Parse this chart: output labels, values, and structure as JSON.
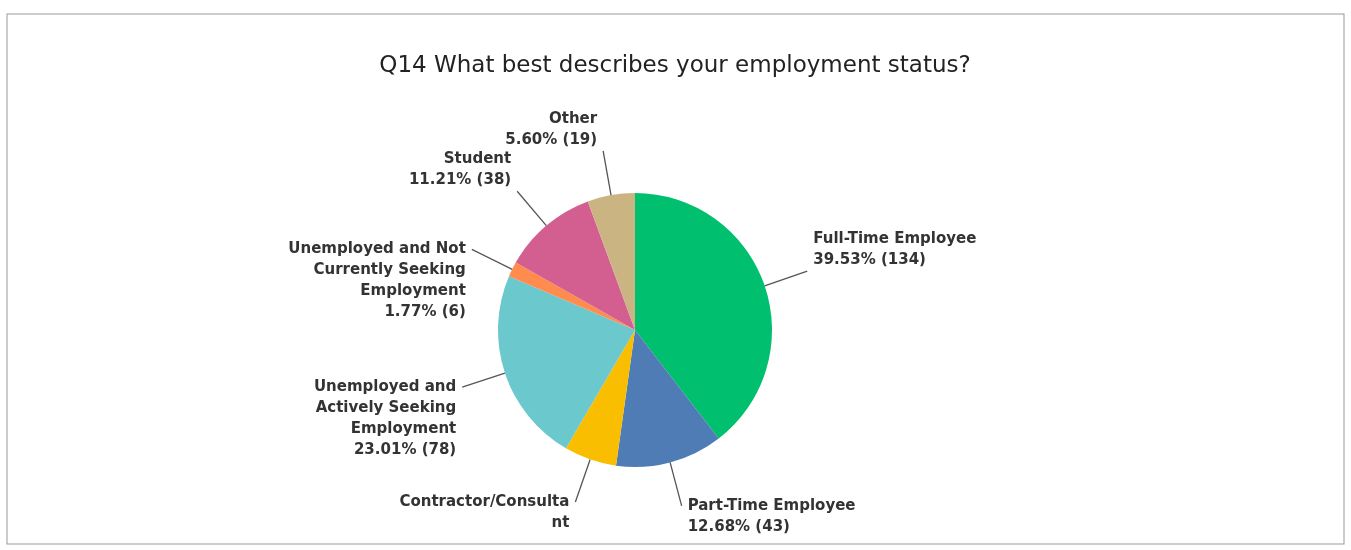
{
  "chart_data": {
    "type": "pie",
    "title": "Q14 What best describes your employment status?",
    "categories": [
      "Full-Time Employee",
      "Part-Time Employee",
      "Contractor/Consulta\nnt",
      "Unemployed and\nActively Seeking\nEmployment",
      "Unemployed and Not\nCurrently Seeking\nEmployment",
      "Student",
      "Other"
    ],
    "values": [
      39.53,
      12.68,
      6.19,
      23.01,
      1.77,
      11.21,
      5.6
    ],
    "value_labels": [
      "39.53% (134)",
      "12.68% (43)",
      null,
      "23.01% (78)",
      "1.77% (6)",
      "11.21% (38)",
      "5.60% (19)"
    ],
    "colors": [
      "#00bf6f",
      "#507cb6",
      "#f9be00",
      "#6bc8cd",
      "#ff8b4f",
      "#d25f90",
      "#c9b482"
    ]
  }
}
